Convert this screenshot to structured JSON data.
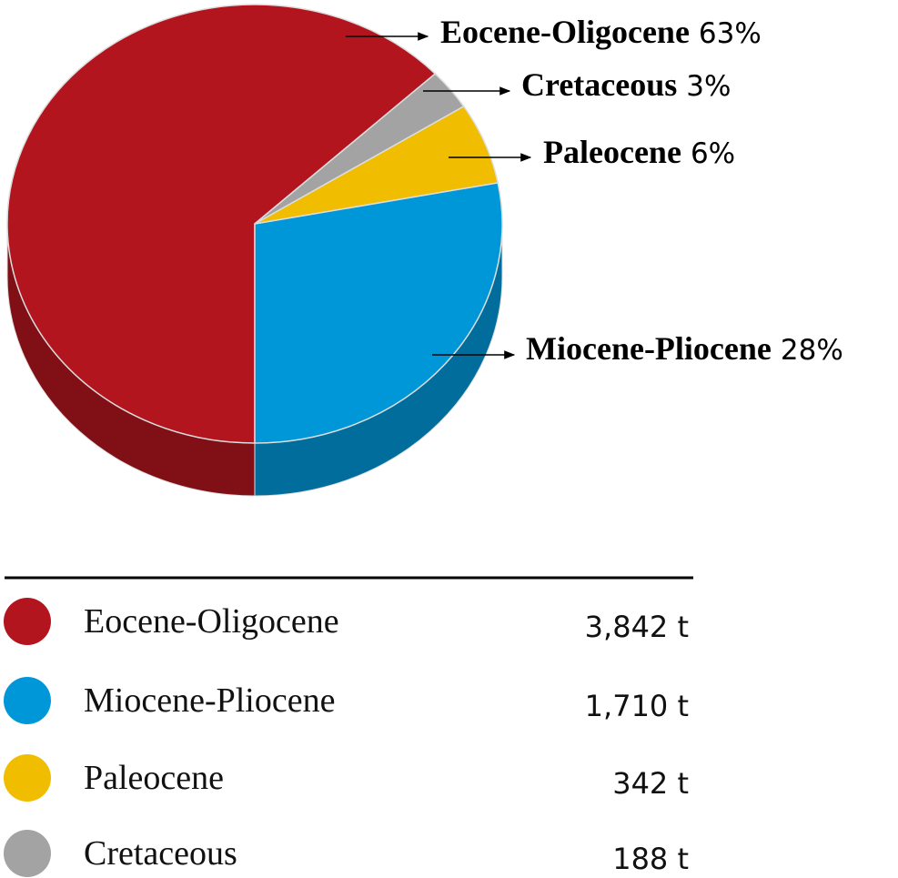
{
  "chart_data": {
    "type": "pie",
    "categories": [
      "Eocene-Oligocene",
      "Miocene-Pliocene",
      "Paleocene",
      "Cretaceous"
    ],
    "values": [
      63,
      28,
      6,
      3
    ],
    "value_labels": [
      "63%",
      "28%",
      "6%",
      "3%"
    ],
    "colors": [
      "#b3151f",
      "#0097d9",
      "#f0bd00",
      "#a3a3a3"
    ],
    "legend": {
      "values": [
        3842,
        1710,
        342,
        188
      ],
      "value_labels": [
        "3,842 t",
        "1,710 t",
        "342 t",
        "188 t"
      ]
    }
  }
}
